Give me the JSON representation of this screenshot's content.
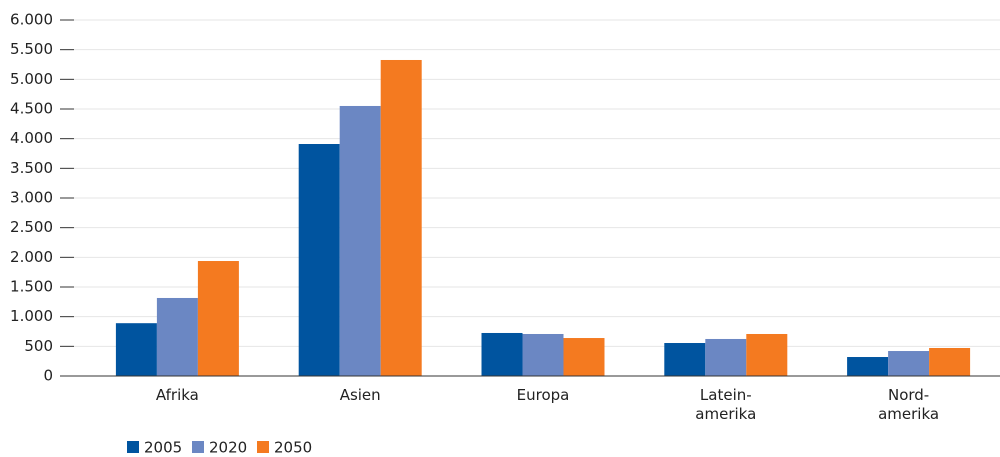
{
  "chart_data": {
    "type": "bar",
    "categories": [
      "Afrika",
      "Asien",
      "Europa",
      "Latein-\namerika",
      "Nord-\namerika"
    ],
    "series": [
      {
        "name": "2005",
        "color": "#00549f",
        "values": [
          890,
          3910,
          725,
          556,
          320
        ]
      },
      {
        "name": "2020",
        "color": "#6b87c3",
        "values": [
          1315,
          4551,
          708,
          624,
          421
        ]
      },
      {
        "name": "2050",
        "color": "#f47a20",
        "values": [
          1938,
          5326,
          640,
          708,
          472
        ]
      }
    ],
    "ylim": [
      0,
      6000
    ],
    "yticks": [
      0,
      500,
      {
        "value": 1000,
        "label": "1.000"
      },
      {
        "value": 1500,
        "label": "1.500"
      },
      {
        "value": 2000,
        "label": "2.000"
      },
      {
        "value": 2500,
        "label": "2.500"
      },
      {
        "value": 3000,
        "label": "3.000"
      },
      {
        "value": 3500,
        "label": "3.500"
      },
      {
        "value": 4000,
        "label": "4.000"
      },
      {
        "value": 4500,
        "label": "4.500"
      },
      {
        "value": 5000,
        "label": "5.000"
      },
      {
        "value": 5500,
        "label": "5.500"
      },
      {
        "value": 6000,
        "label": "6.000"
      }
    ],
    "grid": true,
    "legend": "bottom-left"
  }
}
